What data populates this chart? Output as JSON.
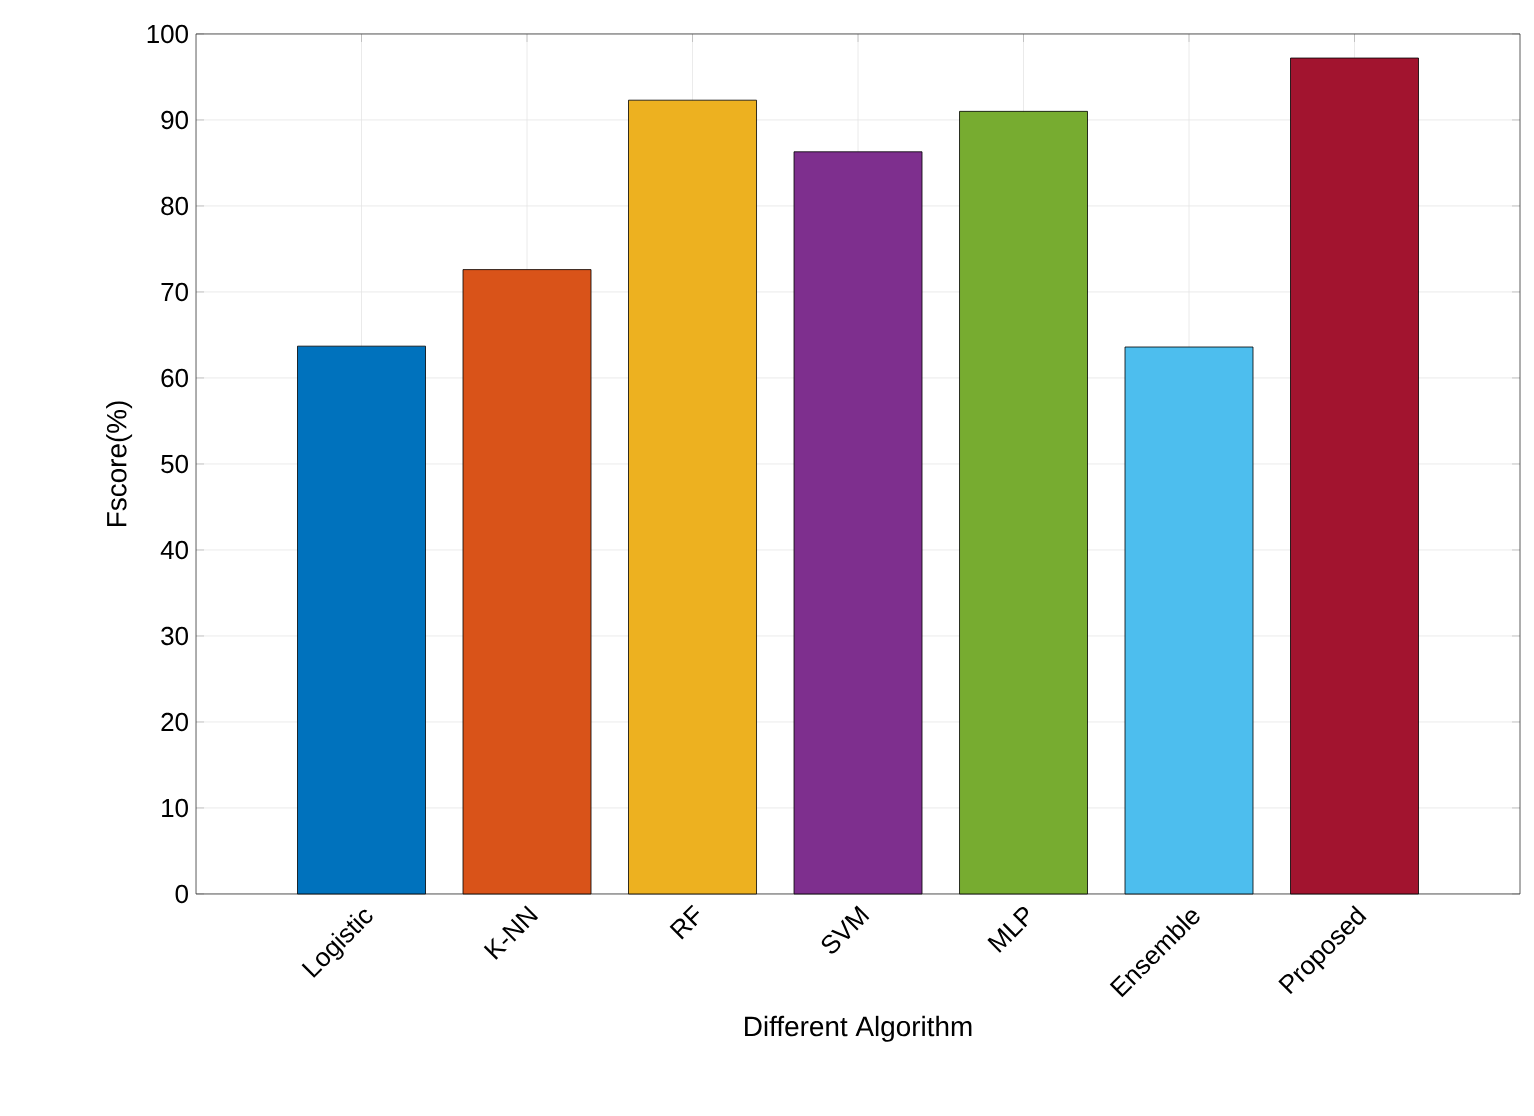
{
  "chart_data": {
    "type": "bar",
    "xlabel": "Different Algorithm",
    "ylabel": "Fscore(%)",
    "categories": [
      "Logistic",
      "K-NN",
      "RF",
      "SVM",
      "MLP",
      "Ensemble",
      "Proposed"
    ],
    "values": [
      63.7,
      72.6,
      92.3,
      86.3,
      91.0,
      63.6,
      97.2
    ],
    "colors": [
      "#0072bd",
      "#d95319",
      "#edb120",
      "#7e2f8e",
      "#77ac30",
      "#4dbeee",
      "#a2142f"
    ],
    "ylim": [
      0,
      100
    ],
    "yticks": [
      0,
      10,
      20,
      30,
      40,
      50,
      60,
      70,
      80,
      90,
      100
    ],
    "grid": true
  }
}
